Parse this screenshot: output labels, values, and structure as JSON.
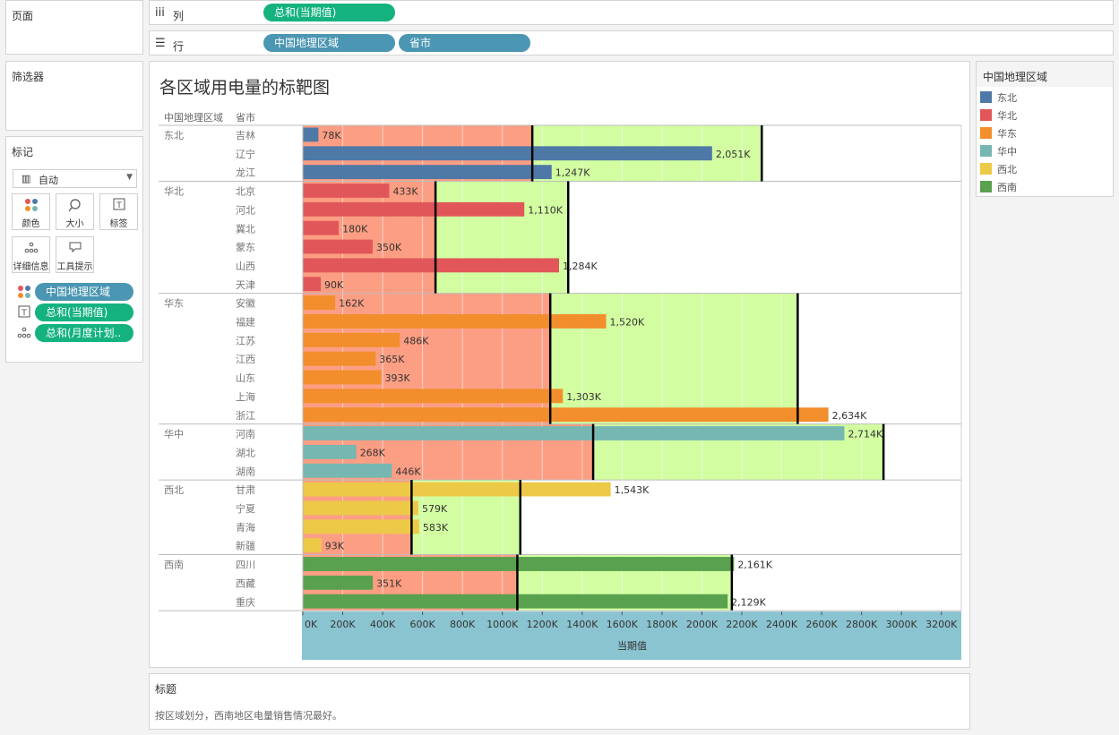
{
  "panels": {
    "pages_title": "页面",
    "filters_title": "筛选器",
    "marks_title": "标记",
    "columns_label": "列",
    "rows_label": "行"
  },
  "shelves": {
    "columns_pills": [
      "总和(当期值)"
    ],
    "rows_pills": [
      "中国地理区域",
      "省市"
    ]
  },
  "marks": {
    "type_value": "自动",
    "buttons": [
      "颜色",
      "大小",
      "标签",
      "详细信息",
      "工具提示"
    ],
    "fields": [
      "中国地理区域",
      "总和(当期值)",
      "总和(月度计划.."
    ]
  },
  "legend": {
    "title": "中国地理区域",
    "items": [
      {
        "label": "东北",
        "color": "#4e79a7"
      },
      {
        "label": "华北",
        "color": "#e15759"
      },
      {
        "label": "华东",
        "color": "#f28e2b"
      },
      {
        "label": "华中",
        "color": "#76b7b2"
      },
      {
        "label": "西北",
        "color": "#edc948"
      },
      {
        "label": "西南",
        "color": "#59a14f"
      }
    ]
  },
  "caption": {
    "title": "标题",
    "text": "按区域划分，西南地区电量销售情况最好。"
  },
  "colors": {
    "band_low": "#fc9e83",
    "band_high": "#d2fea1",
    "axis_bg": "#8ac4d0"
  },
  "chart_data": {
    "type": "bar",
    "title": "各区域用电量的标靶图",
    "header_region": "中国地理区域",
    "header_province": "省市",
    "xlabel": "当期值",
    "xlim": [
      0,
      3300000
    ],
    "xticks": [
      "0K",
      "200K",
      "400K",
      "600K",
      "800K",
      "1000K",
      "1200K",
      "1400K",
      "1600K",
      "1800K",
      "2000K",
      "2200K",
      "2400K",
      "2600K",
      "2800K",
      "3000K",
      "3200K"
    ],
    "regions": [
      {
        "name": "东北",
        "band_low_end": 1150000,
        "band_high_end": 2300000,
        "ref_lines": [
          1150000,
          2300000
        ],
        "rows": [
          {
            "province": "吉林",
            "value": 78000,
            "label": "78K"
          },
          {
            "province": "辽宁",
            "value": 2051000,
            "label": "2,051K"
          },
          {
            "province": "龙江",
            "value": 1247000,
            "label": "1,247K"
          }
        ]
      },
      {
        "name": "华北",
        "band_low_end": 665000,
        "band_high_end": 1330000,
        "ref_lines": [
          665000,
          1330000
        ],
        "rows": [
          {
            "province": "北京",
            "value": 433000,
            "label": "433K"
          },
          {
            "province": "河北",
            "value": 1110000,
            "label": "1,110K"
          },
          {
            "province": "冀北",
            "value": 180000,
            "label": "180K"
          },
          {
            "province": "蒙东",
            "value": 350000,
            "label": "350K"
          },
          {
            "province": "山西",
            "value": 1284000,
            "label": "1,284K"
          },
          {
            "province": "天津",
            "value": 90000,
            "label": "90K"
          }
        ]
      },
      {
        "name": "华东",
        "band_low_end": 1240000,
        "band_high_end": 2480000,
        "ref_lines": [
          1240000,
          2480000
        ],
        "rows": [
          {
            "province": "安徽",
            "value": 162000,
            "label": "162K"
          },
          {
            "province": "福建",
            "value": 1520000,
            "label": "1,520K"
          },
          {
            "province": "江苏",
            "value": 486000,
            "label": "486K"
          },
          {
            "province": "江西",
            "value": 365000,
            "label": "365K"
          },
          {
            "province": "山东",
            "value": 393000,
            "label": "393K"
          },
          {
            "province": "上海",
            "value": 1303000,
            "label": "1,303K"
          },
          {
            "province": "浙江",
            "value": 2634000,
            "label": "2,634K"
          }
        ]
      },
      {
        "name": "华中",
        "band_low_end": 1455000,
        "band_high_end": 2910000,
        "ref_lines": [
          1455000,
          2910000
        ],
        "rows": [
          {
            "province": "河南",
            "value": 2714000,
            "label": "2,714K"
          },
          {
            "province": "湖北",
            "value": 268000,
            "label": "268K"
          },
          {
            "province": "湖南",
            "value": 446000,
            "label": "446K"
          }
        ]
      },
      {
        "name": "西北",
        "band_low_end": 545000,
        "band_high_end": 1090000,
        "ref_lines": [
          545000,
          1090000
        ],
        "rows": [
          {
            "province": "甘肃",
            "value": 1543000,
            "label": "1,543K"
          },
          {
            "province": "宁夏",
            "value": 579000,
            "label": "579K"
          },
          {
            "province": "青海",
            "value": 583000,
            "label": "583K"
          },
          {
            "province": "新疆",
            "value": 93000,
            "label": "93K"
          }
        ]
      },
      {
        "name": "西南",
        "band_low_end": 1075000,
        "band_high_end": 2150000,
        "ref_lines": [
          1075000,
          2150000
        ],
        "rows": [
          {
            "province": "四川",
            "value": 2161000,
            "label": "2,161K"
          },
          {
            "province": "西藏",
            "value": 351000,
            "label": "351K"
          },
          {
            "province": "重庆",
            "value": 2129000,
            "label": "2,129K"
          }
        ]
      }
    ]
  }
}
